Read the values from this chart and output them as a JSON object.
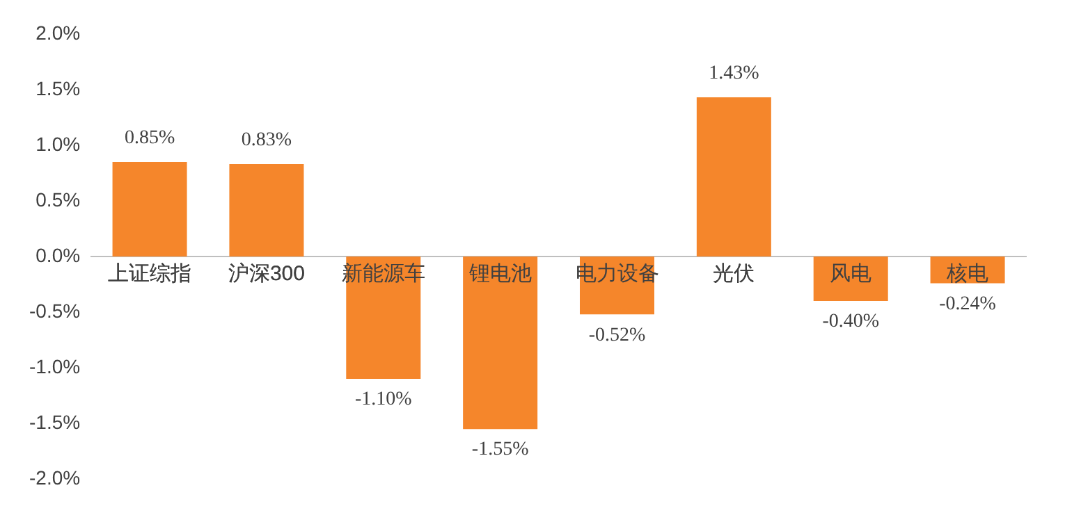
{
  "chart_data": {
    "type": "bar",
    "categories": [
      "上证综指",
      "沪深300",
      "新能源车",
      "锂电池",
      "电力设备",
      "光伏",
      "风电",
      "核电"
    ],
    "values": [
      0.85,
      0.83,
      -1.1,
      -1.55,
      -0.52,
      1.43,
      -0.4,
      -0.24
    ],
    "value_labels": [
      "0.85%",
      "0.83%",
      "-1.10%",
      "-1.55%",
      "-0.52%",
      "1.43%",
      "-0.40%",
      "-0.24%"
    ],
    "color": "#f5862b",
    "ylim": [
      -2.0,
      2.0
    ],
    "yticks": [
      {
        "value": -2.0,
        "label": "-2.0%"
      },
      {
        "value": -1.5,
        "label": "-1.5%"
      },
      {
        "value": -1.0,
        "label": "-1.0%"
      },
      {
        "value": -0.5,
        "label": "-0.5%"
      },
      {
        "value": 0,
        "label": "0.0%"
      },
      {
        "value": 0.5,
        "label": "0.5%"
      },
      {
        "value": 1.0,
        "label": "1.0%"
      },
      {
        "value": 1.5,
        "label": "1.5%"
      },
      {
        "value": 2.0,
        "label": "2.0%"
      }
    ],
    "grid": false,
    "legend": false
  }
}
